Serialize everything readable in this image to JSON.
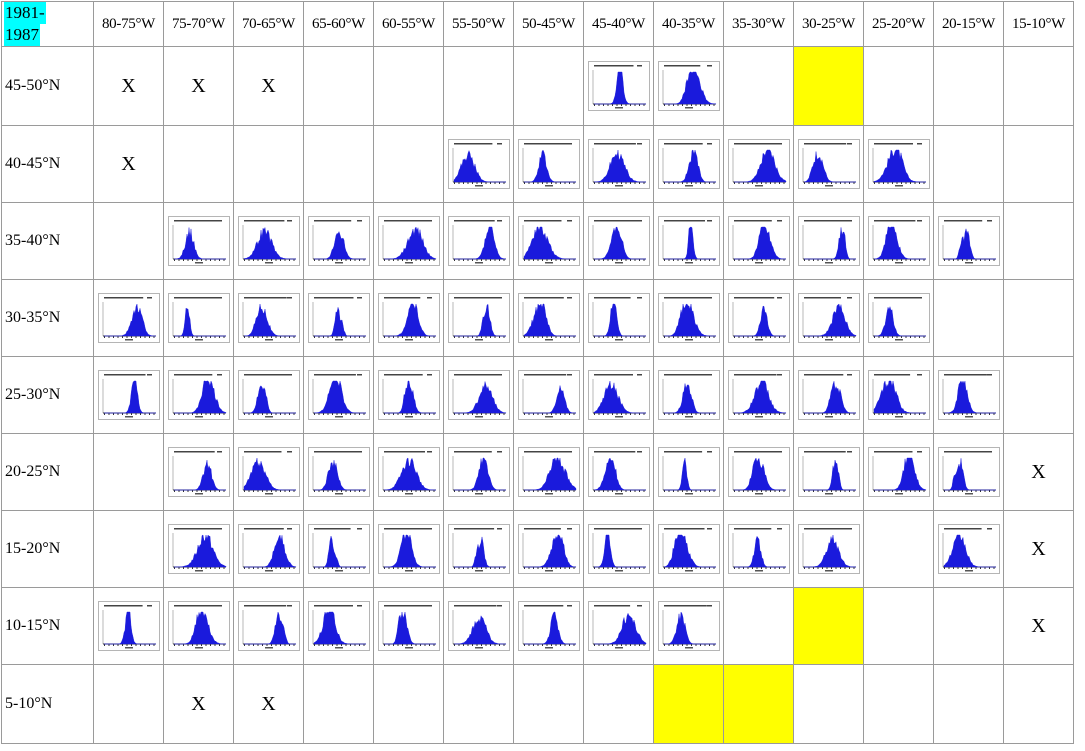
{
  "period_label": "1981-\n1987",
  "period_line1": "1981-",
  "period_line2": "1987",
  "columns": [
    "80-75°W",
    "75-70°W",
    "70-65°W",
    "65-60°W",
    "60-55°W",
    "55-50°W",
    "50-45°W",
    "45-40°W",
    "40-35°W",
    "35-30°W",
    "30-25°W",
    "25-20°W",
    "20-15°W",
    "15-10°W"
  ],
  "rows": [
    {
      "label": "45-50°N",
      "cells": [
        "X",
        "X",
        "X",
        "",
        "",
        "",
        "",
        "H",
        "H",
        "",
        "Y",
        "",
        "",
        ""
      ]
    },
    {
      "label": "40-45°N",
      "cells": [
        "X",
        "",
        "",
        "",
        "",
        "H",
        "H",
        "H",
        "H",
        "H",
        "H",
        "H",
        "",
        ""
      ]
    },
    {
      "label": "35-40°N",
      "cells": [
        "",
        "H",
        "H",
        "H",
        "H",
        "H",
        "H",
        "H",
        "H",
        "H",
        "H",
        "H",
        "H",
        ""
      ]
    },
    {
      "label": "30-35°N",
      "cells": [
        "H",
        "H",
        "H",
        "H",
        "H",
        "H",
        "H",
        "H",
        "H",
        "H",
        "H",
        "H",
        "",
        ""
      ]
    },
    {
      "label": "25-30°N",
      "cells": [
        "H",
        "H",
        "H",
        "H",
        "H",
        "H",
        "H",
        "H",
        "H",
        "H",
        "H",
        "H",
        "H",
        ""
      ]
    },
    {
      "label": "20-25°N",
      "cells": [
        "",
        "H",
        "H",
        "H",
        "H",
        "H",
        "H",
        "H",
        "H",
        "H",
        "H",
        "H",
        "H",
        "X"
      ]
    },
    {
      "label": "15-20°N",
      "cells": [
        "",
        "H",
        "H",
        "H",
        "H",
        "H",
        "H",
        "H",
        "H",
        "H",
        "H",
        "",
        "H",
        "X"
      ]
    },
    {
      "label": "10-15°N",
      "cells": [
        "H",
        "H",
        "H",
        "H",
        "H",
        "H",
        "H",
        "H",
        "H",
        "",
        "Y",
        "",
        "",
        "X"
      ]
    },
    {
      "label": "5-10°N",
      "cells": [
        "",
        "X",
        "X",
        "",
        "",
        "",
        "",
        "",
        "Y",
        "Y",
        "",
        "",
        "",
        ""
      ]
    }
  ],
  "legend": {
    "H": "histogram thumbnail",
    "X": "X",
    "Y": "yellow highlighted cell"
  },
  "colors": {
    "period_bg": "#00ffff",
    "highlight": "#ffff00",
    "histogram": "#1a1adc",
    "grid": "#9a9a9a"
  },
  "mark_text": "X"
}
